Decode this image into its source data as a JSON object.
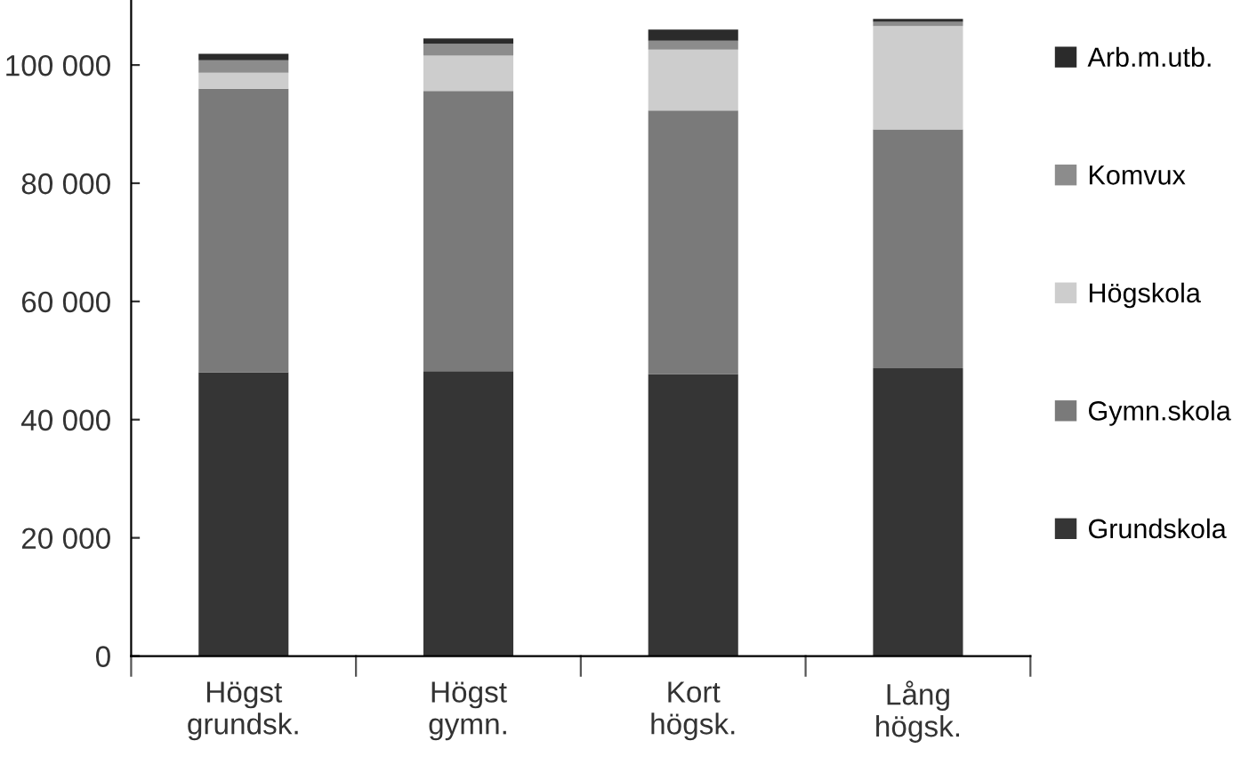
{
  "chart_data": {
    "type": "bar",
    "stacked": true,
    "categories": [
      "Högst\ngrundsk.",
      "Högst\ngymn.",
      "Kort\nhögsk.",
      "Lång\nhögsk."
    ],
    "series": [
      {
        "name": "Grundskola",
        "color": "#353535",
        "values": [
          48000,
          48200,
          47700,
          48700
        ]
      },
      {
        "name": "Gymn.skola",
        "color": "#7a7a7a",
        "values": [
          48000,
          47400,
          44600,
          40400
        ]
      },
      {
        "name": "Högskola",
        "color": "#cdcdcd",
        "values": [
          2700,
          6000,
          10300,
          17500
        ]
      },
      {
        "name": "Komvux",
        "color": "#8c8c8c",
        "values": [
          2100,
          2000,
          1500,
          700
        ]
      },
      {
        "name": "Arb.m.utb.",
        "color": "#2b2b2b",
        "values": [
          1100,
          900,
          1900,
          500
        ]
      }
    ],
    "ylim": [
      0,
      111000
    ],
    "yticks": [
      {
        "value": 0,
        "label": "0"
      },
      {
        "value": 20000,
        "label": "20 000"
      },
      {
        "value": 40000,
        "label": "40 000"
      },
      {
        "value": 60000,
        "label": "60 000"
      },
      {
        "value": 80000,
        "label": "80 000"
      },
      {
        "value": 100000,
        "label": "100 000"
      }
    ],
    "grid": false,
    "legend": "right"
  }
}
